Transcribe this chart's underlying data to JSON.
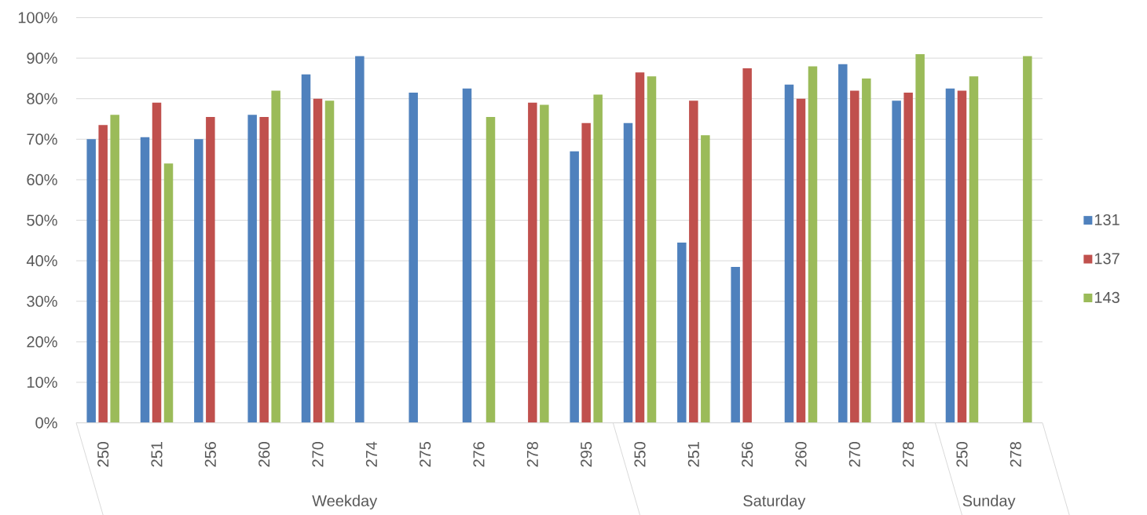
{
  "chart_data": {
    "type": "bar",
    "categories": [
      "250",
      "251",
      "256",
      "260",
      "270",
      "274",
      "275",
      "276",
      "278",
      "295",
      "250",
      "251",
      "256",
      "260",
      "270",
      "278",
      "250",
      "278"
    ],
    "series": [
      {
        "name": "131",
        "color": "#4f81bd",
        "values": [
          70,
          70.5,
          70,
          76,
          86,
          90.5,
          81.5,
          82.5,
          null,
          67,
          74,
          44.5,
          38.5,
          83.5,
          88.5,
          79.5,
          82.5,
          null
        ]
      },
      {
        "name": "137",
        "color": "#c0504d",
        "values": [
          73.5,
          79,
          75.5,
          75.5,
          80,
          null,
          null,
          null,
          79,
          74,
          86.5,
          79.5,
          87.5,
          80,
          82,
          81.5,
          82,
          null
        ]
      },
      {
        "name": "143",
        "color": "#9bbb59",
        "values": [
          76,
          64,
          null,
          82,
          79.5,
          null,
          null,
          75.5,
          78.5,
          81,
          85.5,
          71,
          null,
          88,
          85,
          91,
          85.5,
          90.5
        ]
      }
    ],
    "ylim": [
      0,
      100
    ],
    "yticks": [
      {
        "value": 0,
        "label": "0%"
      },
      {
        "value": 10,
        "label": "10%"
      },
      {
        "value": 20,
        "label": "20%"
      },
      {
        "value": 30,
        "label": "30%"
      },
      {
        "value": 40,
        "label": "40%"
      },
      {
        "value": 50,
        "label": "50%"
      },
      {
        "value": 60,
        "label": "60%"
      },
      {
        "value": 70,
        "label": "70%"
      },
      {
        "value": 80,
        "label": "80%"
      },
      {
        "value": 90,
        "label": "90%"
      },
      {
        "value": 100,
        "label": "100%"
      }
    ],
    "grid": "y",
    "legend": "right",
    "annotations": [
      "Weekday",
      "Saturday",
      "Sunday"
    ]
  }
}
